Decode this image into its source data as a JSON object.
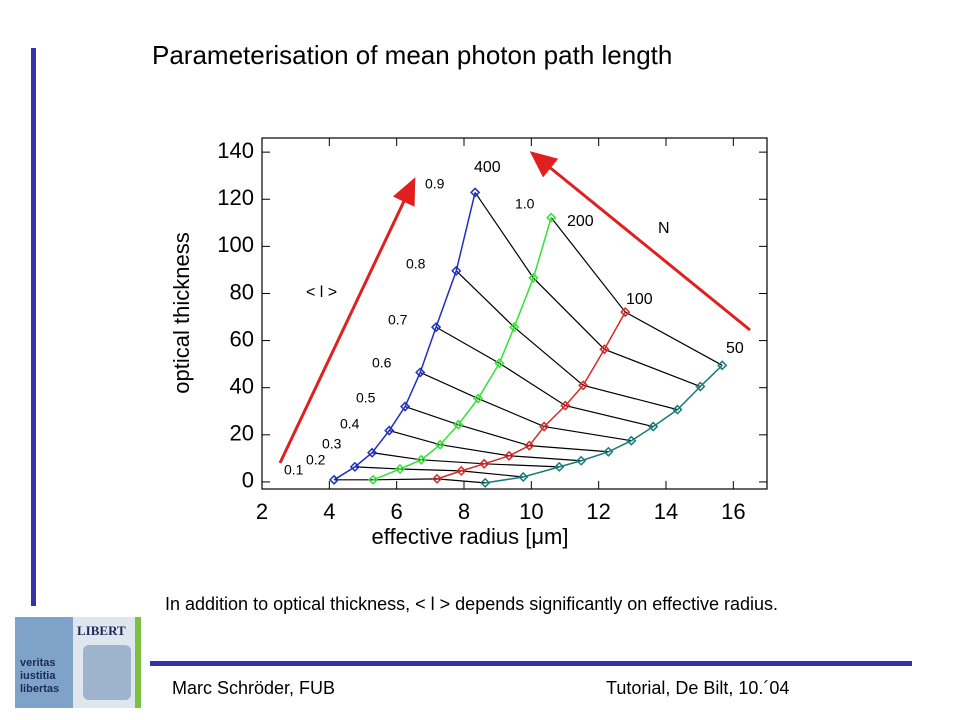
{
  "title": "Parameterisation of mean photon path length",
  "body": "In addition to optical thickness, < l > depends significantly on effective radius.",
  "footer": {
    "left": "Marc Schröder, FUB",
    "right": "Tutorial, De Bilt, 10.´04"
  },
  "logo": {
    "top": "LIBERT",
    "motto": [
      "veritas",
      "iustitia",
      "libertas"
    ]
  },
  "chart_data": {
    "type": "line",
    "xlabel": "effective radius [μm]",
    "ylabel": "optical thickness",
    "xlim": [
      2,
      17
    ],
    "ylim": [
      -3,
      146
    ],
    "xticks": [
      2,
      4,
      6,
      8,
      10,
      12,
      14,
      16
    ],
    "yticks": [
      0,
      20,
      40,
      60,
      80,
      100,
      120,
      140
    ],
    "annotations": [
      "0.1",
      "0.2",
      "0.3",
      "0.4",
      "0.5",
      "0.6",
      "0.7",
      "0.8",
      "0.9",
      "1.0",
      "400",
      "200",
      "100",
      "50",
      "N",
      "< l >"
    ],
    "series": [
      {
        "name": "400",
        "color": "#1f2fbf",
        "x": [
          4.14,
          4.76,
          5.27,
          5.78,
          6.25,
          6.7,
          7.17,
          7.77,
          8.33
        ],
        "values": [
          0.9,
          6.4,
          12.4,
          21.8,
          32.0,
          46.5,
          65.7,
          89.6,
          122.9
        ]
      },
      {
        "name": "200",
        "color": "#33e233",
        "x": [
          5.3,
          6.1,
          6.73,
          7.29,
          7.83,
          8.42,
          9.05,
          9.49,
          10.06,
          10.59
        ],
        "values": [
          0.9,
          5.5,
          9.4,
          15.8,
          24.3,
          35.4,
          50.4,
          65.7,
          86.6,
          112.2
        ]
      },
      {
        "name": "100",
        "color": "#d42a2a",
        "x": [
          7.2,
          7.92,
          8.6,
          9.34,
          9.94,
          10.38,
          11.01,
          11.54,
          12.17,
          12.79
        ],
        "values": [
          1.3,
          4.7,
          7.7,
          11.1,
          15.4,
          23.5,
          32.4,
          41.0,
          56.3,
          72.1
        ]
      },
      {
        "name": "50",
        "color": "#1a7a7a",
        "x": [
          8.63,
          9.76,
          10.83,
          11.48,
          12.29,
          12.97,
          13.62,
          14.34,
          15.02,
          15.67
        ],
        "values": [
          -0.4,
          2.1,
          6.4,
          9.0,
          12.8,
          17.5,
          23.5,
          30.7,
          40.5,
          49.5
        ]
      }
    ]
  }
}
